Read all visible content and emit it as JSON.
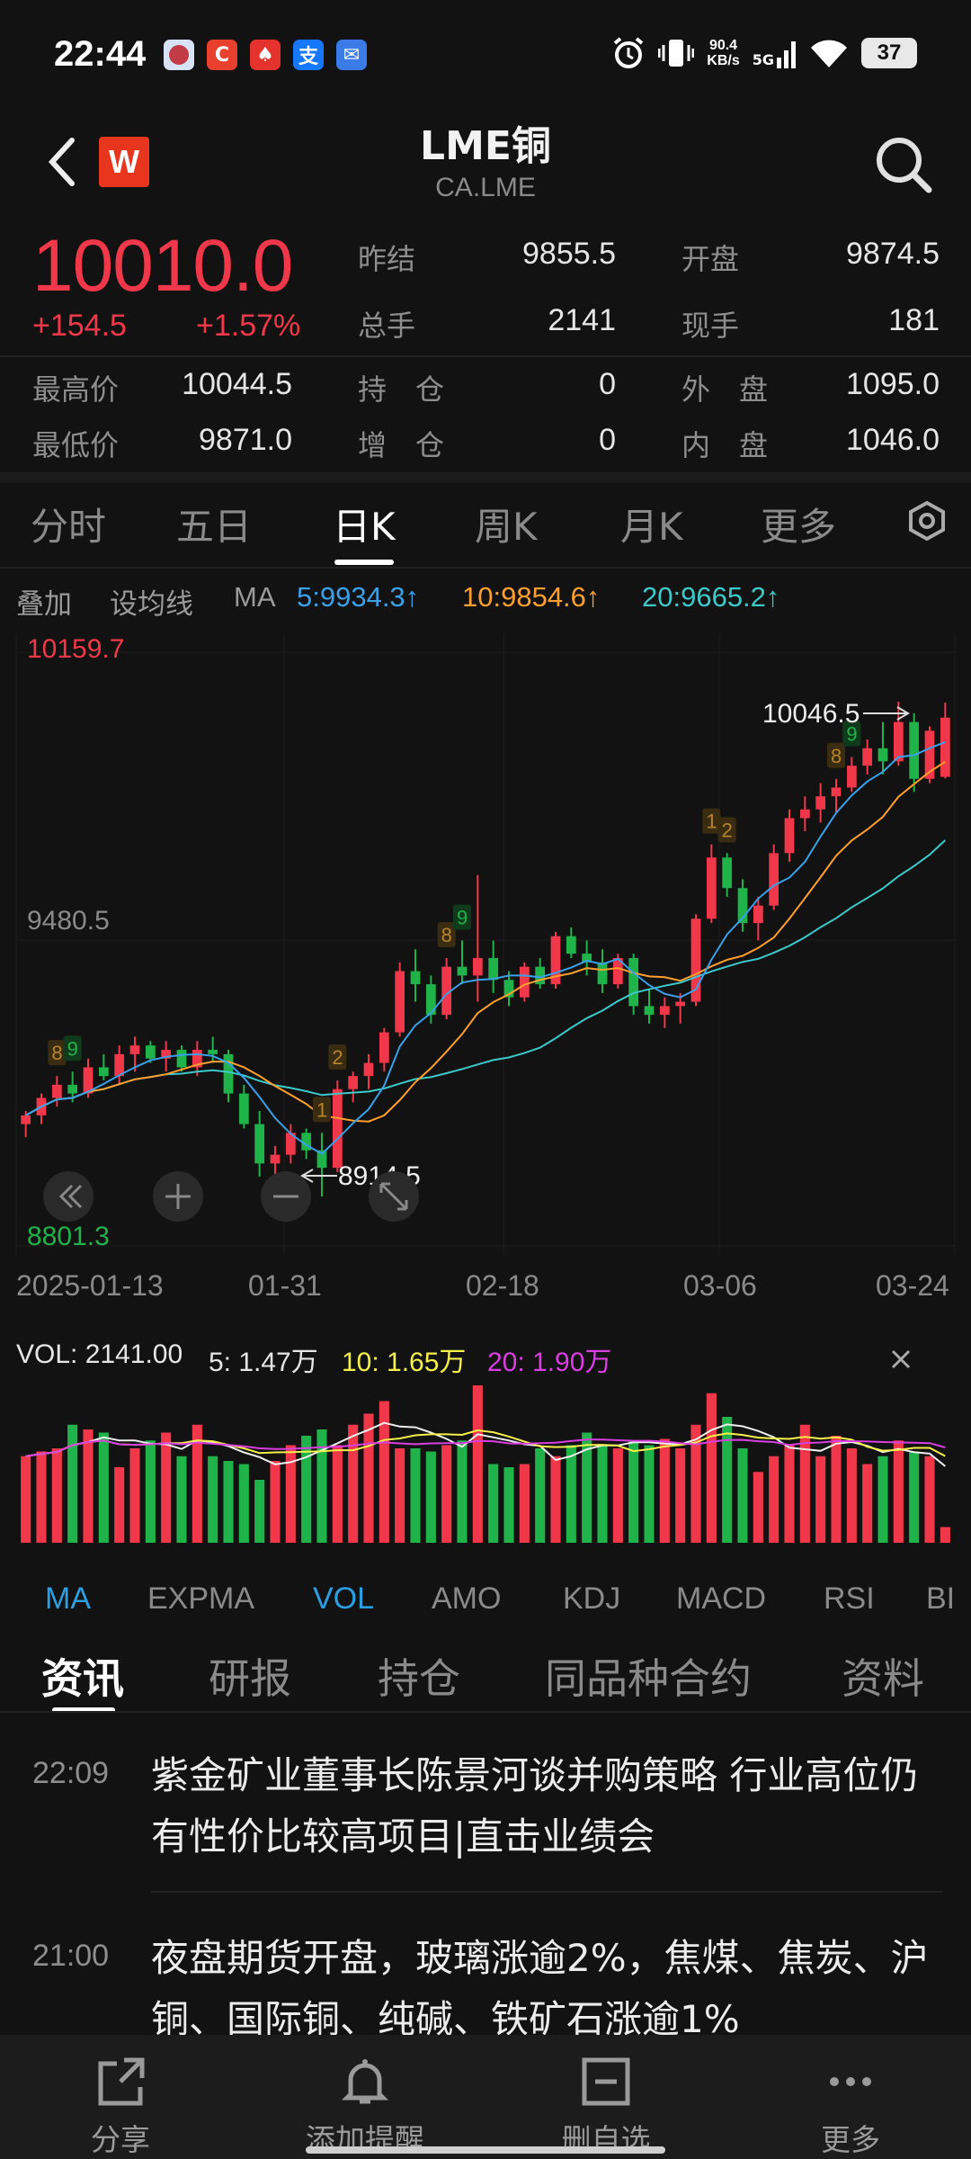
{
  "status_bar": {
    "time": "22:44",
    "net_speed_value": "90.4",
    "net_speed_unit": "KB/s",
    "network": "5G",
    "battery": "37",
    "notification_icons": [
      "app-notification-icon",
      "c-app-icon",
      "red-app-icon",
      "alipay-icon",
      "mail-icon"
    ]
  },
  "header": {
    "title": "LME铜",
    "subtitle": "CA.LME",
    "logo_letter": "W"
  },
  "quote": {
    "price": "10010.0",
    "change": "+154.5",
    "change_pct": "+1.57%",
    "fields": [
      {
        "label": "昨结",
        "value": "9855.5"
      },
      {
        "label": "开盘",
        "value": "9874.5"
      },
      {
        "label": "总手",
        "value": "2141"
      },
      {
        "label": "现手",
        "value": "181"
      },
      {
        "label": "最高价",
        "value": "10044.5"
      },
      {
        "label": "持　仓",
        "value": "0"
      },
      {
        "label": "外　盘",
        "value": "1095.0"
      },
      {
        "label": "最低价",
        "value": "9871.0"
      },
      {
        "label": "增　仓",
        "value": "0"
      },
      {
        "label": "内　盘",
        "value": "1046.0"
      }
    ]
  },
  "periods": [
    "分时",
    "五日",
    "日K",
    "周K",
    "月K",
    "更多"
  ],
  "active_period": "日K",
  "ma_row": {
    "overlay": "叠加",
    "set_ma": "设均线",
    "ma": "MA",
    "ma5": "5:9934.3↑",
    "ma10": "10:9854.6↑",
    "ma20": "20:9665.2↑"
  },
  "kline": {
    "axis_top": "10159.7",
    "axis_mid": "9480.5",
    "axis_bottom": "8801.3",
    "high_label": "10046.5",
    "low_label": "8914.5",
    "dates": [
      "2025-01-13",
      "01-31",
      "02-18",
      "03-06",
      "03-24"
    ]
  },
  "volume": {
    "vol": "VOL: 2141.00",
    "v5": "5: 1.47万",
    "v10": "10: 1.65万",
    "v20": "20: 1.90万"
  },
  "indicators": [
    "MA",
    "EXPMA",
    "VOL",
    "AMO",
    "KDJ",
    "MACD",
    "RSI",
    "BI"
  ],
  "news_tabs": [
    "资讯",
    "研报",
    "持仓",
    "同品种合约",
    "资料"
  ],
  "news": [
    {
      "time": "22:09",
      "text": "紫金矿业董事长陈景河谈并购策略 行业高位仍有性价比较高项目|直击业绩会"
    },
    {
      "time": "21:00",
      "text": "夜盘期货开盘，玻璃涨逾2%，焦煤、焦炭、沪铜、国际铜、纯碱、铁矿石涨逾1%"
    }
  ],
  "bottom_bar": [
    "分享",
    "添加提醒",
    "删自选",
    "更多"
  ],
  "colors": {
    "up": "#f0384a",
    "down": "#1fb34a",
    "ma5": "#3aa0e8",
    "ma10": "#ff9f2e",
    "ma20": "#3dc9c9",
    "background": "#121212"
  },
  "chart_data": {
    "type": "candlestick",
    "title": "",
    "ylim": [
      8801.3,
      10159.7
    ],
    "x": [
      "2025-01-13",
      "01-31",
      "02-18",
      "03-06",
      "03-24"
    ],
    "candles_ohlc": [
      [
        9080,
        9110,
        9050,
        9100
      ],
      [
        9100,
        9150,
        9080,
        9140
      ],
      [
        9140,
        9190,
        9120,
        9170
      ],
      [
        9170,
        9200,
        9130,
        9150
      ],
      [
        9150,
        9230,
        9140,
        9210
      ],
      [
        9210,
        9240,
        9180,
        9190
      ],
      [
        9190,
        9260,
        9170,
        9240
      ],
      [
        9240,
        9280,
        9200,
        9260
      ],
      [
        9260,
        9270,
        9220,
        9230
      ],
      [
        9230,
        9270,
        9200,
        9250
      ],
      [
        9250,
        9260,
        9200,
        9210
      ],
      [
        9210,
        9270,
        9190,
        9250
      ],
      [
        9250,
        9280,
        9220,
        9240
      ],
      [
        9240,
        9250,
        9130,
        9150
      ],
      [
        9150,
        9170,
        9070,
        9080
      ],
      [
        9080,
        9110,
        8960,
        8990
      ],
      [
        8990,
        9030,
        8950,
        9010
      ],
      [
        9010,
        9080,
        8990,
        9060
      ],
      [
        9060,
        9070,
        9000,
        9020
      ],
      [
        9020,
        9060,
        8914.5,
        8980
      ],
      [
        8980,
        9180,
        8970,
        9160
      ],
      [
        9160,
        9200,
        9130,
        9190
      ],
      [
        9190,
        9240,
        9160,
        9220
      ],
      [
        9220,
        9300,
        9200,
        9290
      ],
      [
        9290,
        9450,
        9280,
        9430
      ],
      [
        9430,
        9480,
        9360,
        9400
      ],
      [
        9400,
        9420,
        9310,
        9330
      ],
      [
        9330,
        9460,
        9320,
        9440
      ],
      [
        9440,
        9500,
        9400,
        9420
      ],
      [
        9420,
        9650,
        9360,
        9460
      ],
      [
        9460,
        9500,
        9380,
        9410
      ],
      [
        9410,
        9430,
        9350,
        9370
      ],
      [
        9370,
        9450,
        9360,
        9440
      ],
      [
        9440,
        9460,
        9390,
        9400
      ],
      [
        9400,
        9520,
        9390,
        9510
      ],
      [
        9510,
        9530,
        9460,
        9470
      ],
      [
        9470,
        9500,
        9420,
        9450
      ],
      [
        9450,
        9480,
        9380,
        9400
      ],
      [
        9400,
        9470,
        9390,
        9460
      ],
      [
        9460,
        9470,
        9330,
        9350
      ],
      [
        9350,
        9390,
        9310,
        9330
      ],
      [
        9330,
        9370,
        9300,
        9350
      ],
      [
        9350,
        9380,
        9310,
        9360
      ],
      [
        9360,
        9560,
        9350,
        9550
      ],
      [
        9550,
        9720,
        9540,
        9690
      ],
      [
        9690,
        9700,
        9600,
        9620
      ],
      [
        9620,
        9640,
        9520,
        9540
      ],
      [
        9540,
        9600,
        9500,
        9580
      ],
      [
        9580,
        9720,
        9570,
        9700
      ],
      [
        9700,
        9800,
        9680,
        9780
      ],
      [
        9780,
        9830,
        9750,
        9800
      ],
      [
        9800,
        9860,
        9770,
        9830
      ],
      [
        9830,
        9870,
        9790,
        9850
      ],
      [
        9850,
        9920,
        9840,
        9900
      ],
      [
        9900,
        9960,
        9880,
        9940
      ],
      [
        9940,
        10000,
        9880,
        9910
      ],
      [
        9910,
        10046.5,
        9900,
        10000
      ],
      [
        10000,
        10020,
        9840,
        9870
      ],
      [
        9870,
        9990,
        9860,
        9980
      ],
      [
        9874.5,
        10044.5,
        9871,
        10010
      ]
    ],
    "volume_relative": [
      0.55,
      0.58,
      0.6,
      0.75,
      0.72,
      0.7,
      0.48,
      0.6,
      0.65,
      0.7,
      0.55,
      0.75,
      0.55,
      0.52,
      0.5,
      0.4,
      0.52,
      0.62,
      0.68,
      0.72,
      0.62,
      0.75,
      0.82,
      0.9,
      0.6,
      0.6,
      0.58,
      0.62,
      0.65,
      1.0,
      0.5,
      0.48,
      0.5,
      0.6,
      0.55,
      0.62,
      0.7,
      0.62,
      0.6,
      0.65,
      0.62,
      0.66,
      0.6,
      0.75,
      0.95,
      0.8,
      0.6,
      0.45,
      0.55,
      0.62,
      0.75,
      0.55,
      0.68,
      0.6,
      0.5,
      0.55,
      0.65,
      0.58,
      0.55,
      0.1
    ],
    "volume_series": [
      "5",
      "10",
      "20"
    ]
  }
}
